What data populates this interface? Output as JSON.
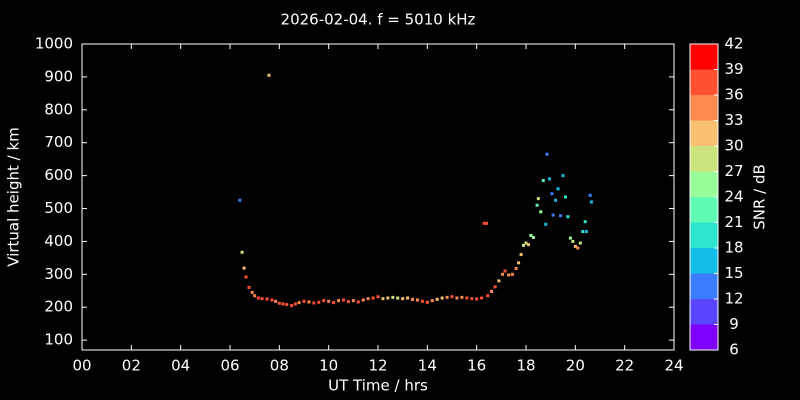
{
  "chart_data": {
    "type": "scatter",
    "title": "2026-02-04. f = 5010 kHz",
    "xlabel": "UT Time / hrs",
    "ylabel": "Virtual height / km",
    "xlim": [
      0,
      24
    ],
    "xticks": [
      {
        "value": 0,
        "label": "00"
      },
      {
        "value": 2,
        "label": "02"
      },
      {
        "value": 4,
        "label": "04"
      },
      {
        "value": 6,
        "label": "06"
      },
      {
        "value": 8,
        "label": "08"
      },
      {
        "value": 10,
        "label": "10"
      },
      {
        "value": 12,
        "label": "12"
      },
      {
        "value": 14,
        "label": "14"
      },
      {
        "value": 16,
        "label": "16"
      },
      {
        "value": 18,
        "label": "18"
      },
      {
        "value": 20,
        "label": "20"
      },
      {
        "value": 22,
        "label": "22"
      },
      {
        "value": 24,
        "label": "24"
      }
    ],
    "ylim": [
      70,
      1000
    ],
    "yticks": [
      100,
      200,
      300,
      400,
      500,
      600,
      700,
      800,
      900,
      1000
    ],
    "colorbar": {
      "label": "SNR / dB",
      "ticks": [
        6,
        9,
        12,
        15,
        18,
        21,
        24,
        27,
        30,
        33,
        36,
        39,
        42
      ],
      "colors": [
        "#7f00ff",
        "#5a46ff",
        "#3c7cff",
        "#14bce8",
        "#2ee6d0",
        "#60fcb4",
        "#98fc98",
        "#cce47c",
        "#f8c070",
        "#ff8a50",
        "#ff5030",
        "#ff0000"
      ]
    },
    "series": [
      {
        "x": [
          6.4,
          7.58,
          6.49,
          6.57,
          6.65,
          6.77,
          6.9,
          7.0,
          7.15,
          7.3,
          7.5,
          7.7,
          7.85,
          8.0,
          8.15,
          8.3,
          8.5,
          8.65,
          8.8,
          9.0,
          9.2,
          9.4,
          9.6,
          9.8,
          10.0,
          10.2,
          10.4,
          10.6,
          10.8,
          11.0,
          11.2,
          11.4,
          11.6,
          11.8,
          12.0,
          12.2,
          12.4,
          12.6,
          12.8,
          13.0,
          13.2,
          13.4,
          13.6,
          13.8,
          14.0,
          14.2,
          14.4,
          14.6,
          14.8,
          15.0,
          15.2,
          15.4,
          15.6,
          15.8,
          16.0,
          16.2,
          16.3,
          16.4,
          16.45,
          16.6,
          16.75,
          16.9,
          17.05,
          17.15,
          17.3,
          17.45,
          17.6,
          17.7,
          17.8,
          17.9,
          18.0,
          18.1,
          18.2,
          18.3,
          18.45,
          18.5,
          18.6,
          18.7,
          18.8,
          18.85,
          18.95,
          19.05,
          19.1,
          19.2,
          19.3,
          19.4,
          19.5,
          19.6,
          19.7,
          19.8,
          19.9,
          20.0,
          20.1,
          20.2,
          20.3,
          20.4,
          20.45,
          20.6,
          20.65
        ],
        "y": [
          525,
          905,
          367,
          319,
          292,
          260,
          245,
          235,
          228,
          226,
          225,
          222,
          218,
          212,
          210,
          208,
          205,
          210,
          214,
          218,
          216,
          213,
          215,
          220,
          218,
          214,
          220,
          222,
          217,
          220,
          216,
          222,
          226,
          228,
          232,
          226,
          228,
          230,
          228,
          226,
          228,
          224,
          222,
          218,
          215,
          220,
          224,
          228,
          230,
          232,
          228,
          230,
          228,
          226,
          225,
          228,
          455,
          455,
          235,
          248,
          262,
          280,
          300,
          310,
          298,
          300,
          318,
          335,
          360,
          388,
          395,
          390,
          418,
          412,
          510,
          530,
          490,
          585,
          452,
          665,
          590,
          545,
          480,
          525,
          560,
          478,
          600,
          535,
          475,
          410,
          400,
          385,
          380,
          395,
          430,
          460,
          430,
          540,
          520
        ],
        "snr": [
          13,
          31,
          27,
          31,
          36,
          37,
          35,
          35,
          36,
          36,
          37,
          36,
          35,
          37,
          36,
          37,
          38,
          36,
          35,
          36,
          34,
          36,
          37,
          36,
          33,
          36,
          35,
          37,
          36,
          35,
          36,
          35,
          33,
          36,
          37,
          32,
          30,
          28,
          29,
          31,
          30,
          33,
          35,
          36,
          37,
          33,
          30,
          31,
          35,
          36,
          34,
          35,
          36,
          37,
          36,
          37,
          37,
          36,
          36,
          35,
          36,
          32,
          34,
          36,
          33,
          35,
          33,
          31,
          30,
          28,
          27,
          30,
          26,
          25,
          22,
          27,
          24,
          22,
          17,
          14,
          17,
          14,
          14,
          15,
          17,
          13,
          16,
          19,
          18,
          25,
          27,
          30,
          33,
          27,
          18,
          20,
          15,
          14,
          15
        ]
      }
    ]
  }
}
